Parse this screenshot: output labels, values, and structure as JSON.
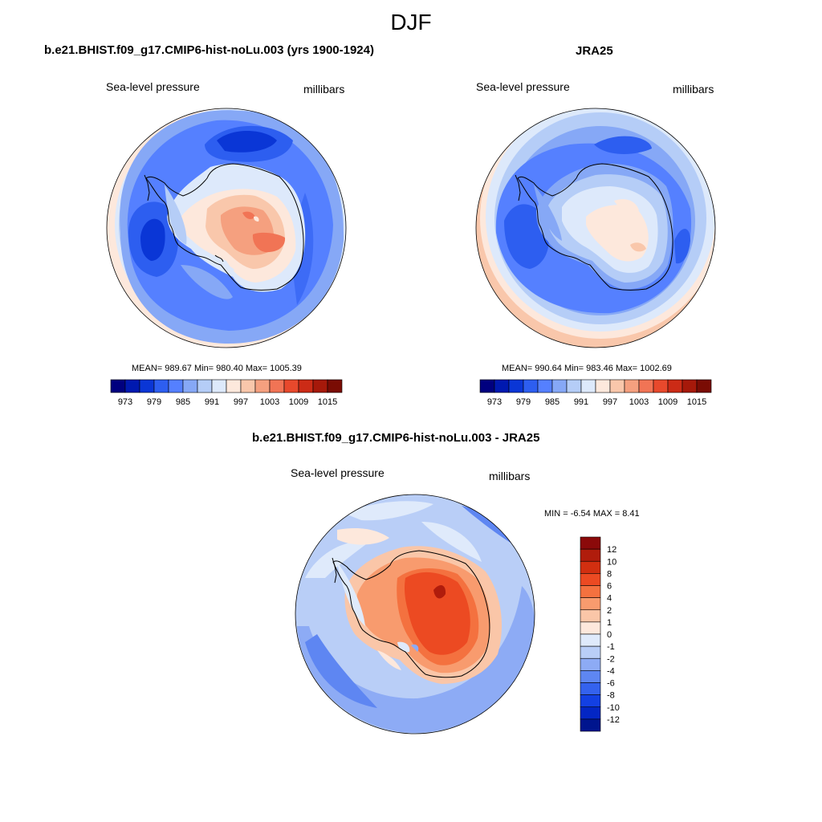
{
  "title": "DJF",
  "panels": [
    {
      "title": "b.e21.BHIST.f09_g17.CMIP6-hist-noLu.003 (yrs 1900-1924)",
      "left_label": "Sea-level pressure",
      "right_label": "millibars",
      "stats": "MEAN= 989.67  Min= 980.40  Max= 1005.39"
    },
    {
      "title": "JRA25",
      "left_label": "Sea-level pressure",
      "right_label": "millibars",
      "stats": "MEAN= 990.64  Min= 983.46  Max= 1002.69"
    }
  ],
  "diff_panel": {
    "title": "b.e21.BHIST.f09_g17.CMIP6-hist-noLu.003 - JRA25",
    "left_label": "Sea-level pressure",
    "right_label": "millibars",
    "stats": "MIN =  -6.54 MAX =   8.41"
  },
  "colorbar_h": {
    "colors": [
      "#00007f",
      "#0019b0",
      "#0a36d6",
      "#2d5ef0",
      "#5580ff",
      "#86a8f6",
      "#b5cdf7",
      "#dde9fb",
      "#fde8dc",
      "#f9c7ab",
      "#f5a07f",
      "#f17455",
      "#e8492c",
      "#cc2b16",
      "#a6190a",
      "#7a0c04"
    ],
    "tick_labels": [
      "973",
      "979",
      "985",
      "991",
      "997",
      "1003",
      "1009",
      "1015"
    ]
  },
  "colorbar_v": {
    "colors": [
      "#8b0a0a",
      "#b01c0c",
      "#d22f10",
      "#ec4a22",
      "#f4713f",
      "#f89b6e",
      "#fac6a8",
      "#fde8dc",
      "#dfeafb",
      "#b9cef7",
      "#8dabf5",
      "#5e86f2",
      "#3462ee",
      "#1340e3",
      "#0326c4",
      "#00158e"
    ],
    "tick_labels": [
      "12",
      "10",
      "8",
      "6",
      "4",
      "2",
      "1",
      "0",
      "-1",
      "-2",
      "-4",
      "-6",
      "-8",
      "-10",
      "-12"
    ]
  }
}
